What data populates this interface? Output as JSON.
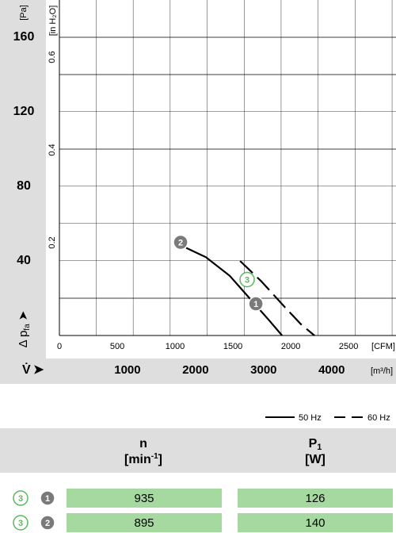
{
  "chart_data": {
    "type": "line",
    "y_label": "[Pa]",
    "y2_label": "[in H₂O]",
    "x_label": "[CFM]",
    "x2_label": "[m³/h]",
    "y_title": [
      "Δ p",
      "fa"
    ],
    "x_title": "V̇",
    "xlim": [
      0,
      2910
    ],
    "xticks": [
      0,
      500,
      1000,
      1500,
      2000,
      2500
    ],
    "x2lim": [
      0,
      4945
    ],
    "x2ticks": [
      1000,
      2000,
      3000,
      4000
    ],
    "ylim": [
      0,
      180
    ],
    "yticks": [
      40,
      80,
      120,
      160
    ],
    "y2lim": [
      0,
      0.723
    ],
    "y2ticks": [
      0.2,
      0.4,
      0.6
    ],
    "series": [
      {
        "name": "50 Hz",
        "color": "#000000",
        "dash": false,
        "x": [
          1096,
          1267,
          1473,
          1644,
          1815,
          1925
        ],
        "values": [
          47,
          42,
          32,
          20,
          8,
          0
        ]
      },
      {
        "name": "60 Hz",
        "color": "#000000",
        "dash": true,
        "x": [
          1562,
          1747,
          1952,
          2089,
          2205
        ],
        "values": [
          40,
          29,
          15,
          6,
          0
        ]
      }
    ],
    "annotations": [
      {
        "label": "2",
        "x": 1048,
        "y": 50,
        "style": "filled"
      },
      {
        "label": "1",
        "x": 1699,
        "y": 17,
        "style": "filled"
      },
      {
        "label": "3",
        "x": 1623,
        "y": 30,
        "style": "outline"
      }
    ]
  },
  "table": {
    "headers": [
      {
        "symbol": "n",
        "unit": "[min",
        "unit_sup": "-1",
        "unit_end": "]"
      },
      {
        "symbol": "P",
        "sub": "1",
        "unit": "[W]"
      }
    ],
    "rows": [
      {
        "markers": [
          "3",
          "1"
        ],
        "values": [
          935,
          126
        ]
      },
      {
        "markers": [
          "3",
          "2"
        ],
        "values": [
          895,
          140
        ]
      }
    ]
  }
}
